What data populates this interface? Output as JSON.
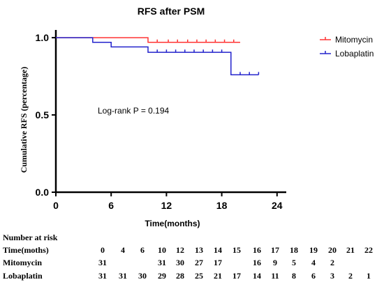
{
  "chart_data": {
    "type": "line",
    "title": "RFS after PSM",
    "xlabel": "Time(months)",
    "ylabel": "Cumulative RFS (percentage)",
    "xlim": [
      0,
      25
    ],
    "ylim": [
      0,
      1.05
    ],
    "x_ticks": [
      "0",
      "6",
      "12",
      "18",
      "24"
    ],
    "y_ticks": [
      "0.0",
      "0.5",
      "1.0"
    ],
    "legend_position": "top-right",
    "annotation": "Log-rank P = 0.194",
    "series": [
      {
        "name": "Mitomycin",
        "color": "#ff3333",
        "steps": [
          [
            0,
            1.0
          ],
          [
            10,
            0.97
          ],
          [
            20,
            0.97
          ]
        ],
        "censor_x": [
          11,
          12.2,
          13.2,
          14.3,
          15.3,
          16.3,
          17.3,
          18.3,
          19.3
        ]
      },
      {
        "name": "Lobaplatin",
        "color": "#2222cc",
        "steps": [
          [
            0,
            1.0
          ],
          [
            4,
            0.97
          ],
          [
            6,
            0.94
          ],
          [
            10,
            0.905
          ],
          [
            19,
            0.76
          ],
          [
            22,
            0.76
          ]
        ],
        "censor_x": [
          11,
          12,
          13,
          14,
          15,
          16,
          17,
          18,
          20,
          21,
          22
        ]
      }
    ]
  },
  "risk_table": {
    "title": "Number at risk",
    "header_label": "Time(moths)",
    "times": [
      "0",
      "4",
      "6",
      "10",
      "12",
      "13",
      "14",
      "15",
      "16",
      "17",
      "18",
      "19",
      "20",
      "21",
      "22"
    ],
    "rows": [
      {
        "label": "Mitomycin",
        "values": [
          "31",
          "",
          "",
          "31",
          "30",
          "27",
          "17",
          "",
          "16",
          "9",
          "5",
          "4",
          "2",
          "",
          ""
        ]
      },
      {
        "label": "Lobaplatin",
        "values": [
          "31",
          "31",
          "30",
          "29",
          "28",
          "25",
          "21",
          "17",
          "14",
          "11",
          "8",
          "6",
          "3",
          "2",
          "1"
        ]
      }
    ]
  }
}
